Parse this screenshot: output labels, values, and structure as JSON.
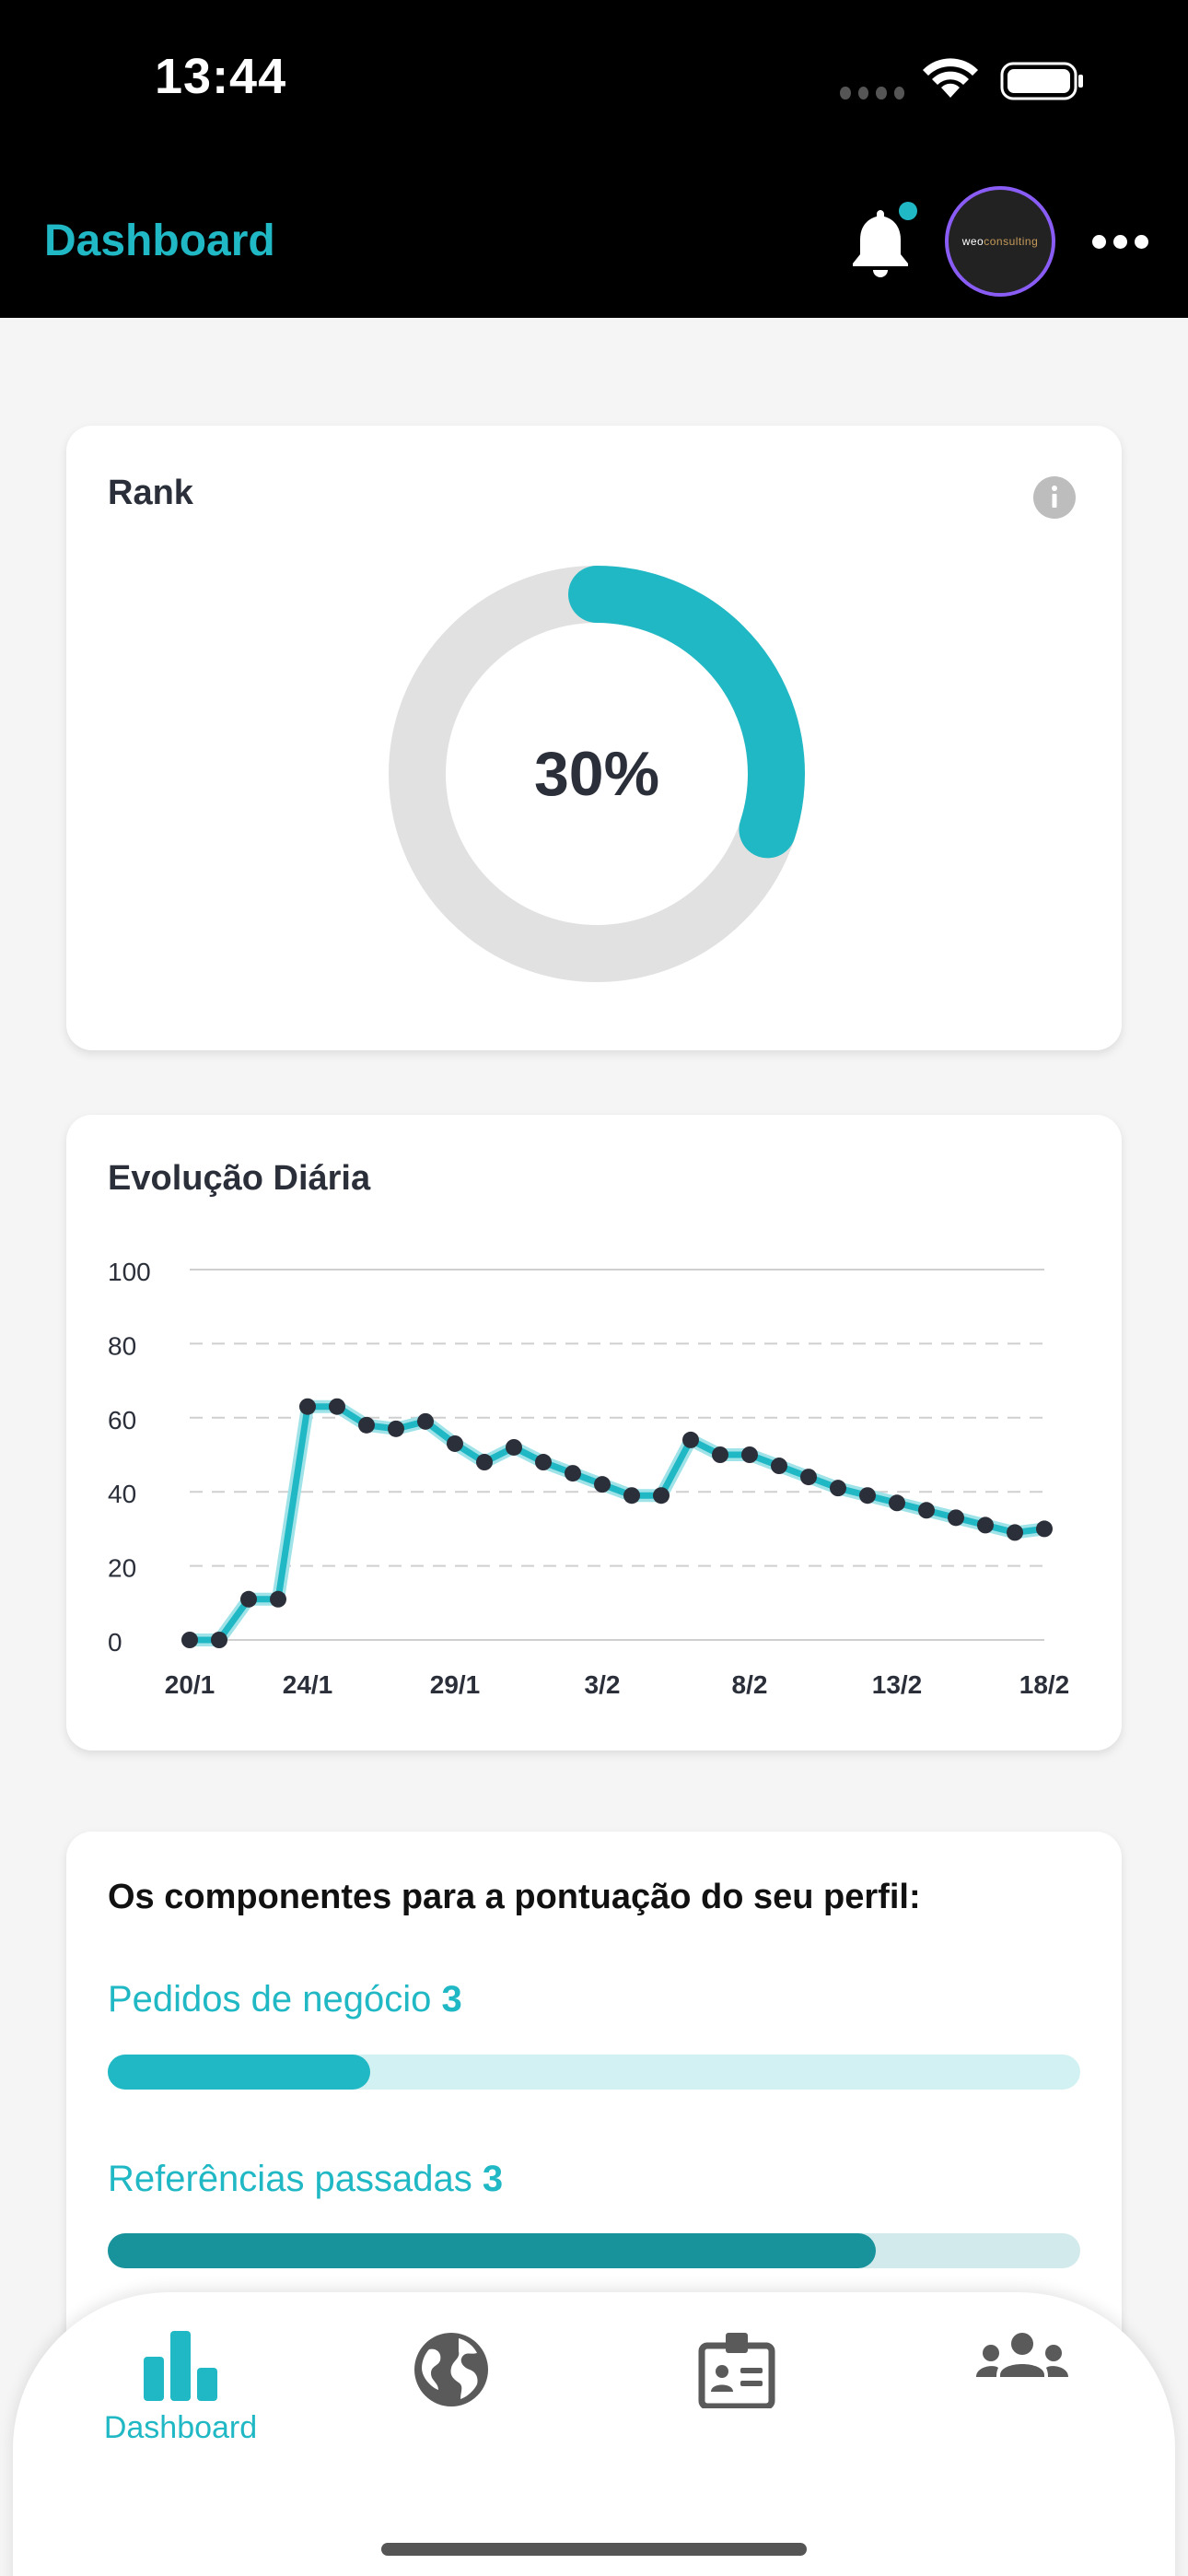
{
  "status_bar": {
    "time": "13:44"
  },
  "header": {
    "title": "Dashboard",
    "avatar_text_a": "weo",
    "avatar_text_b": "consulting"
  },
  "rank": {
    "title": "Rank",
    "value_label": "30%",
    "percent": 30,
    "color": "#20b8c4",
    "track_color": "#e1e1e1"
  },
  "evolution": {
    "title": "Evolução Diária"
  },
  "chart_data": {
    "type": "line",
    "title": "Evolução Diária",
    "xlabel": "",
    "ylabel": "",
    "ylim": [
      0,
      100
    ],
    "yticks": [
      "0",
      "20",
      "40",
      "60",
      "80",
      "100"
    ],
    "xticks": [
      "20/1",
      "24/1",
      "29/1",
      "3/2",
      "8/2",
      "13/2",
      "18/2"
    ],
    "grid": true,
    "series": [
      {
        "color": "#20b8c4",
        "x": [
          "20/1",
          "21/1",
          "22/1",
          "23/1",
          "24/1",
          "25/1",
          "26/1",
          "27/1",
          "28/1",
          "29/1",
          "30/1",
          "31/1",
          "1/2",
          "2/2",
          "3/2",
          "4/2",
          "5/2",
          "6/2",
          "7/2",
          "8/2",
          "9/2",
          "10/2",
          "11/2",
          "12/2",
          "13/2",
          "14/2",
          "15/2",
          "16/2",
          "17/2",
          "18/2"
        ],
        "values": [
          0,
          0,
          11,
          11,
          63,
          63,
          58,
          57,
          59,
          53,
          48,
          52,
          48,
          45,
          42,
          39,
          39,
          54,
          50,
          50,
          47,
          44,
          41,
          39,
          37,
          35,
          33,
          31,
          29,
          30
        ]
      }
    ]
  },
  "components": {
    "title": "Os componentes para a pontuação do seu perfil:",
    "items": [
      {
        "label": "Pedidos de negócio",
        "count": "3",
        "fraction": 0.27,
        "color": "#20b8c4",
        "track": "#d2f1f3"
      },
      {
        "label": "Referências passadas",
        "count": "3",
        "fraction": 0.79,
        "color": "#18939c",
        "track": "#d2eaec"
      }
    ]
  },
  "tabbar": {
    "items": [
      {
        "icon": "bar-chart-icon",
        "label": "Dashboard",
        "active": true
      },
      {
        "icon": "globe-icon",
        "label": "",
        "active": false
      },
      {
        "icon": "id-badge-icon",
        "label": "",
        "active": false
      },
      {
        "icon": "people-icon",
        "label": "",
        "active": false
      }
    ]
  }
}
